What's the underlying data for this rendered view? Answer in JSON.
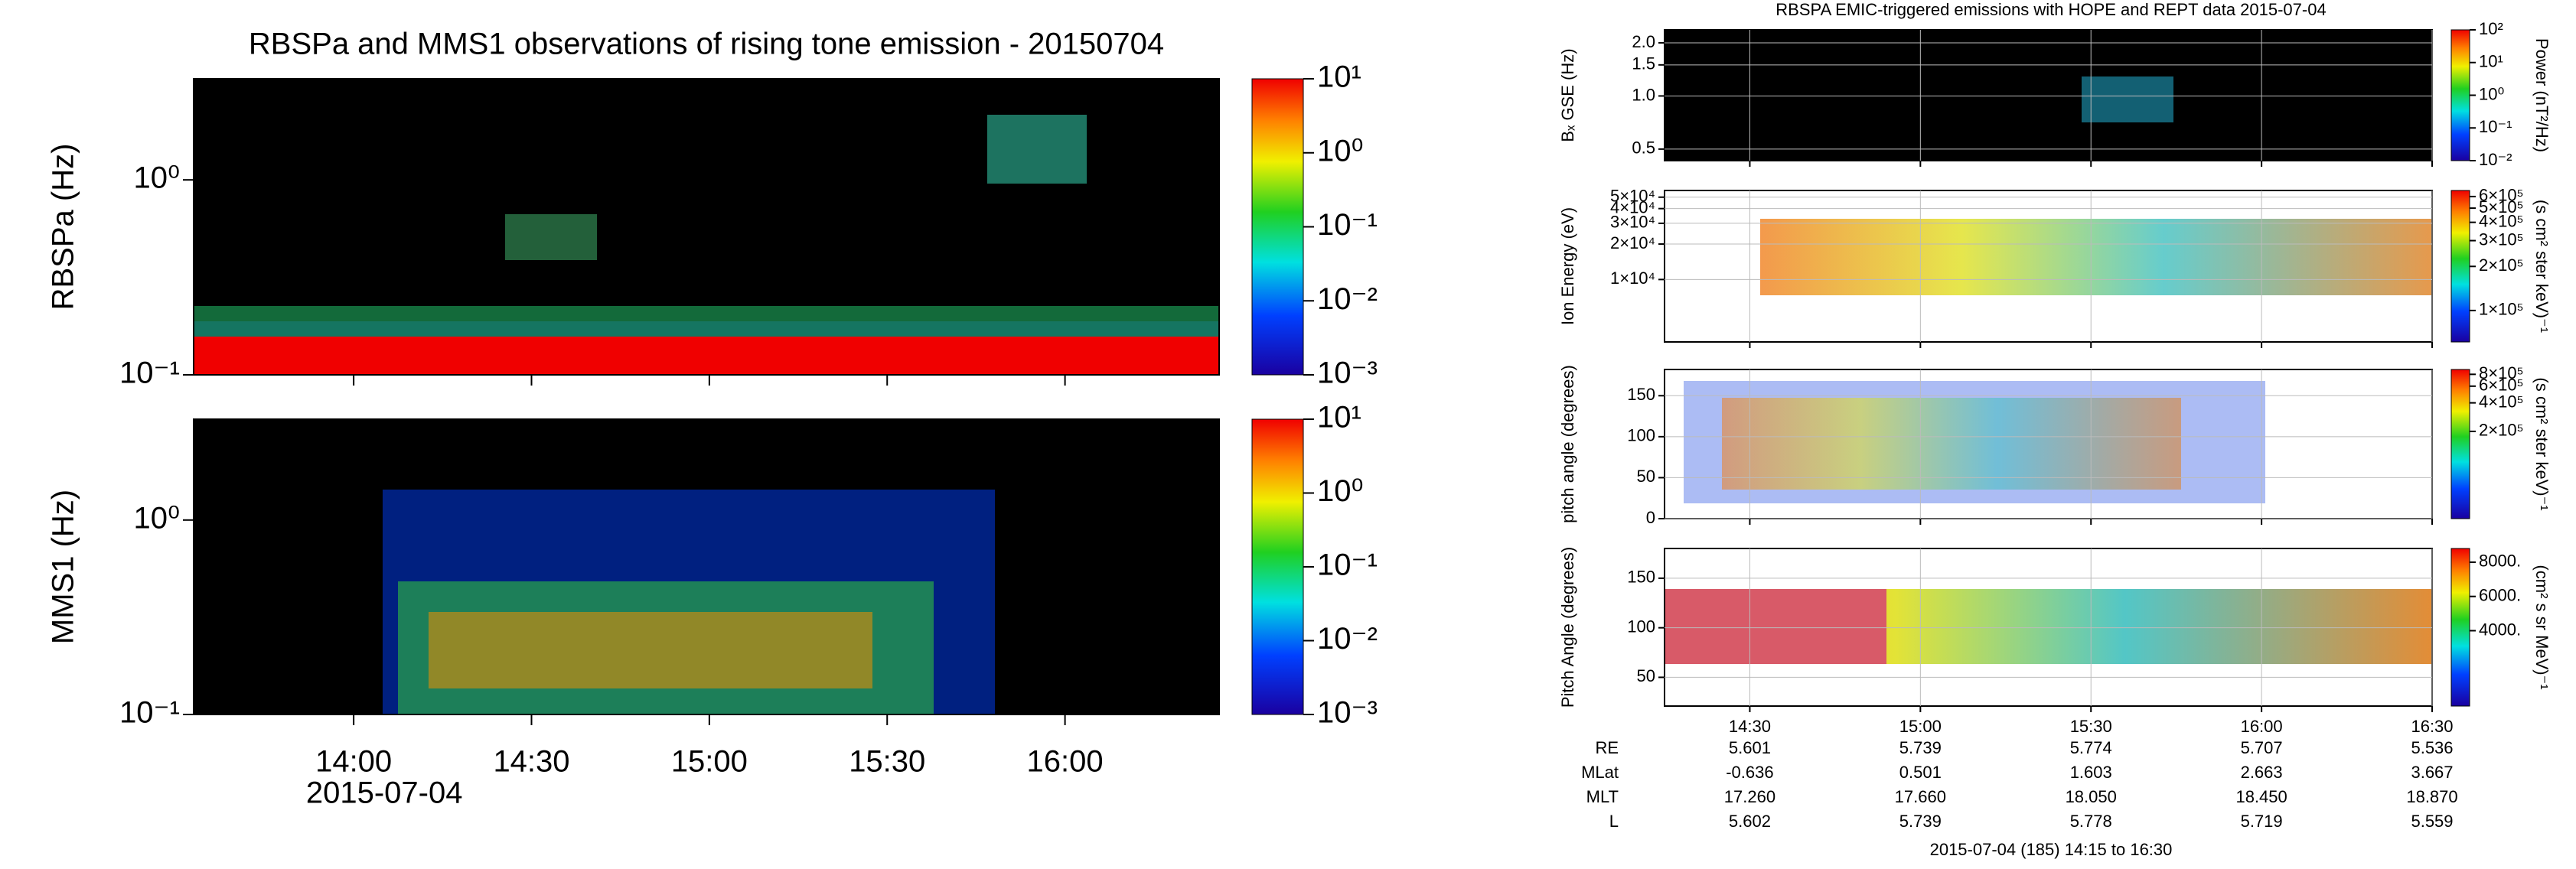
{
  "figures": [
    {
      "title": "RBSPa and MMS1 observations of rising tone emission - 20150704",
      "xlim": [
        813,
        986
      ],
      "xticks": [
        {
          "value": 840,
          "label": "14:00"
        },
        {
          "value": 870,
          "label": "14:30"
        },
        {
          "value": 900,
          "label": "15:00"
        },
        {
          "value": 930,
          "label": "15:30"
        },
        {
          "value": 960,
          "label": "16:00"
        }
      ],
      "date_label": "2015-07-04",
      "panels": [
        {
          "type": "spectrogram",
          "ylabel": "RBSPa (Hz)",
          "log": true,
          "ylim": [
            0.1,
            3.3
          ],
          "yticks": [
            {
              "value": 0.1,
              "label": "10⁻¹"
            },
            {
              "value": 1,
              "label": "10⁰"
            }
          ],
          "colorbar": {
            "log": true,
            "lim": [
              0.001,
              10
            ],
            "ticks": [
              {
                "value": 0.001,
                "label": "10⁻³"
              },
              {
                "value": 0.01,
                "label": "10⁻²"
              },
              {
                "value": 0.1,
                "label": "10⁻¹"
              },
              {
                "value": 1,
                "label": "10⁰"
              },
              {
                "value": 10,
                "label": "10¹"
              }
            ]
          }
        },
        {
          "type": "spectrogram",
          "ylabel": "MMS1 (Hz)",
          "log": true,
          "ylim": [
            0.1,
            3.3
          ],
          "yticks": [
            {
              "value": 0.1,
              "label": "10⁻¹"
            },
            {
              "value": 1,
              "label": "10⁰"
            }
          ],
          "colorbar": {
            "log": true,
            "lim": [
              0.001,
              10
            ],
            "ticks": [
              {
                "value": 0.001,
                "label": "10⁻³"
              },
              {
                "value": 0.01,
                "label": "10⁻²"
              },
              {
                "value": 0.1,
                "label": "10⁻¹"
              },
              {
                "value": 1,
                "label": "10⁰"
              },
              {
                "value": 10,
                "label": "10¹"
              }
            ]
          }
        }
      ]
    },
    {
      "title": "RBSPA EMIC-triggered emissions with HOPE and REPT data 2015-07-04",
      "xlim": [
        855,
        990
      ],
      "xticks": [
        {
          "value": 870,
          "label": "14:30"
        },
        {
          "value": 900,
          "label": "15:00"
        },
        {
          "value": 930,
          "label": "15:30"
        },
        {
          "value": 960,
          "label": "16:00"
        },
        {
          "value": 990,
          "label": "16:30"
        }
      ],
      "footer": "2015-07-04 (185) 14:15 to 16:30",
      "ephemeris": [
        {
          "label": "RE",
          "values": [
            "5.601",
            "5.739",
            "5.774",
            "5.707",
            "5.536"
          ]
        },
        {
          "label": "MLat",
          "values": [
            "-0.636",
            "0.501",
            "1.603",
            "2.663",
            "3.667"
          ]
        },
        {
          "label": "MLT",
          "values": [
            "17.260",
            "17.660",
            "18.050",
            "18.450",
            "18.870"
          ]
        },
        {
          "label": "L",
          "values": [
            "5.602",
            "5.739",
            "5.778",
            "5.719",
            "5.559"
          ]
        }
      ],
      "panels": [
        {
          "type": "spectrogram",
          "ylabel": "Bₓ GSE (Hz)",
          "log": true,
          "grid": true,
          "ylim": [
            0.43,
            2.37
          ],
          "yticks": [
            {
              "value": 0.5,
              "label": "0.5"
            },
            {
              "value": 1,
              "label": "1.0"
            },
            {
              "value": 1.5,
              "label": "1.5"
            },
            {
              "value": 2,
              "label": "2.0"
            }
          ],
          "colorbar": {
            "label": "Power (nT²/Hz)",
            "log": true,
            "lim": [
              0.01,
              100
            ],
            "ticks": [
              {
                "value": 0.01,
                "label": "10⁻²"
              },
              {
                "value": 0.1,
                "label": "10⁻¹"
              },
              {
                "value": 1,
                "label": "10⁰"
              },
              {
                "value": 10,
                "label": "10¹"
              },
              {
                "value": 100,
                "label": "10²"
              }
            ]
          }
        },
        {
          "type": "spectrogram",
          "ylabel": "Ion Energy (eV)",
          "log": true,
          "grid": true,
          "ylim": [
            2950,
            57000
          ],
          "yticks": [
            {
              "value": 10000,
              "label": "1×10⁴"
            },
            {
              "value": 20000,
              "label": "2×10⁴"
            },
            {
              "value": 30000,
              "label": "3×10⁴"
            },
            {
              "value": 40000,
              "label": "4×10⁴"
            },
            {
              "value": 50000,
              "label": "5×10⁴"
            }
          ],
          "colorbar": {
            "label": "(s cm² ster keV)⁻¹",
            "log": true,
            "lim": [
              61000,
              660000
            ],
            "ticks": [
              {
                "value": 100000,
                "label": "1×10⁵"
              },
              {
                "value": 200000,
                "label": "2×10⁵"
              },
              {
                "value": 300000,
                "label": "3×10⁵"
              },
              {
                "value": 400000,
                "label": "4×10⁵"
              },
              {
                "value": 500000,
                "label": "5×10⁵"
              },
              {
                "value": 600000,
                "label": "6×10⁵"
              }
            ]
          }
        },
        {
          "type": "spectrogram",
          "ylabel": "pitch angle (degrees)",
          "log": false,
          "grid": true,
          "ylim": [
            0,
            182
          ],
          "yticks": [
            0,
            50,
            100,
            150
          ],
          "colorbar": {
            "label": "(s cm² ster keV)⁻¹",
            "log": true,
            "lim": [
              24000,
              900000
            ],
            "ticks": [
              {
                "value": 200000,
                "label": "2×10⁵"
              },
              {
                "value": 400000,
                "label": "4×10⁵"
              },
              {
                "value": 600000,
                "label": "6×10⁵"
              },
              {
                "value": 800000,
                "label": "8×10⁵"
              }
            ]
          }
        },
        {
          "type": "spectrogram",
          "ylabel": "Pitch Angle (degrees)",
          "log": false,
          "grid": true,
          "ylim": [
            21,
            180
          ],
          "yticks": [
            50,
            100,
            150
          ],
          "colorbar": {
            "label": "(cm² s sr MeV)⁻¹",
            "log": false,
            "lim": [
              -400,
              8800
            ],
            "ticks": [
              {
                "value": 4000,
                "label": "4000."
              },
              {
                "value": 6000,
                "label": "6000."
              },
              {
                "value": 8000,
                "label": "8000."
              }
            ]
          }
        }
      ]
    }
  ]
}
